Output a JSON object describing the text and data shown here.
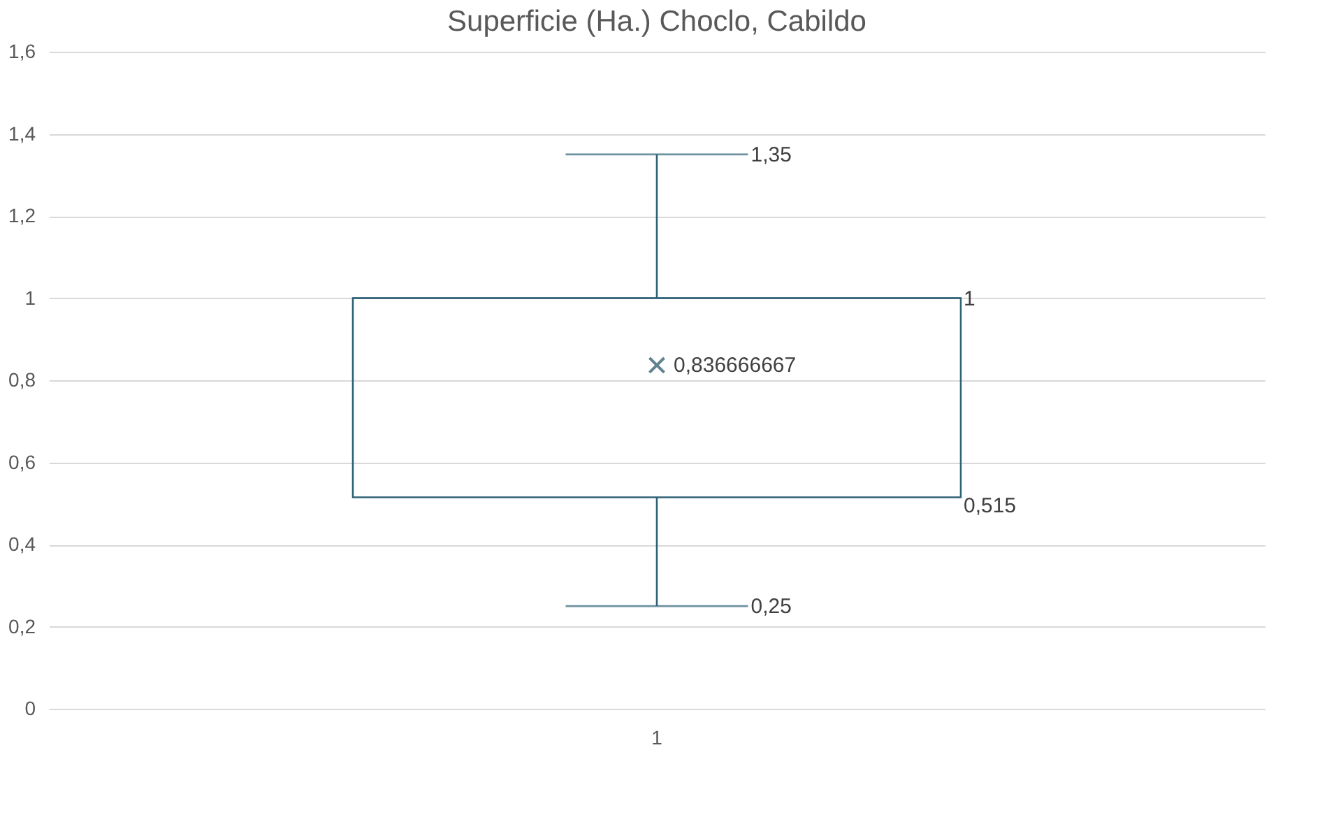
{
  "chart_data": {
    "type": "box",
    "title": "Superficie (Ha.) Choclo, Cabildo",
    "categories": [
      "1"
    ],
    "boxes": [
      {
        "low": 0.25,
        "q1": 0.515,
        "median": 1,
        "q3": 1,
        "high": 1.35,
        "mean": 0.836666667
      }
    ],
    "color": "#2f6277",
    "ylim": [
      0,
      1.6
    ],
    "yticks": [
      0,
      {
        "value": 0.2,
        "label": "0,2"
      },
      {
        "value": 0.4,
        "label": "0,4"
      },
      {
        "value": 0.6,
        "label": "0,6"
      },
      {
        "value": 0.8,
        "label": "0,8"
      },
      1,
      {
        "value": 1.2,
        "label": "1,2"
      },
      {
        "value": 1.4,
        "label": "1,4"
      },
      {
        "value": 1.6,
        "label": "1,6"
      }
    ],
    "grid": "y",
    "marker": "cross",
    "annotations": [
      "1,35",
      "1",
      "0,836666667",
      "0,515",
      "0,25"
    ]
  }
}
